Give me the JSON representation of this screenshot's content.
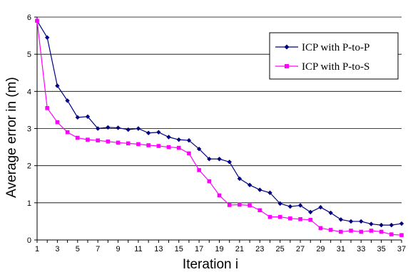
{
  "chart_data": {
    "type": "line",
    "xlabel": "Iteration i",
    "ylabel": "Average error in (m)",
    "xlim": [
      1,
      37
    ],
    "ylim": [
      0,
      6
    ],
    "yticks": [
      0,
      1,
      2,
      3,
      4,
      5,
      6
    ],
    "xticks": [
      1,
      3,
      5,
      7,
      9,
      11,
      13,
      15,
      17,
      19,
      21,
      23,
      25,
      27,
      29,
      31,
      33,
      35,
      37
    ],
    "grid": "horizontal",
    "legend_position": "right",
    "x": [
      1,
      2,
      3,
      4,
      5,
      6,
      7,
      8,
      9,
      10,
      11,
      12,
      13,
      14,
      15,
      16,
      17,
      18,
      19,
      20,
      21,
      22,
      23,
      24,
      25,
      26,
      27,
      28,
      29,
      30,
      31,
      32,
      33,
      34,
      35,
      36,
      37
    ],
    "series": [
      {
        "name": "ICP with P-to-P",
        "color": "#000080",
        "marker": "diamond",
        "values": [
          5.9,
          5.45,
          4.15,
          3.75,
          3.3,
          3.32,
          3.0,
          3.03,
          3.02,
          2.97,
          3.0,
          2.88,
          2.9,
          2.77,
          2.7,
          2.68,
          2.45,
          2.18,
          2.18,
          2.1,
          1.65,
          1.48,
          1.35,
          1.27,
          0.98,
          0.9,
          0.93,
          0.75,
          0.88,
          0.73,
          0.55,
          0.5,
          0.5,
          0.43,
          0.4,
          0.4,
          0.44
        ]
      },
      {
        "name": "ICP with P-to-S",
        "color": "#ff00ff",
        "marker": "square",
        "values": [
          5.9,
          3.55,
          3.17,
          2.9,
          2.75,
          2.7,
          2.68,
          2.65,
          2.62,
          2.6,
          2.58,
          2.55,
          2.53,
          2.5,
          2.48,
          2.33,
          1.88,
          1.58,
          1.2,
          0.94,
          0.95,
          0.93,
          0.8,
          0.62,
          0.62,
          0.58,
          0.56,
          0.54,
          0.32,
          0.27,
          0.22,
          0.25,
          0.22,
          0.25,
          0.22,
          0.15,
          0.13
        ]
      }
    ]
  }
}
